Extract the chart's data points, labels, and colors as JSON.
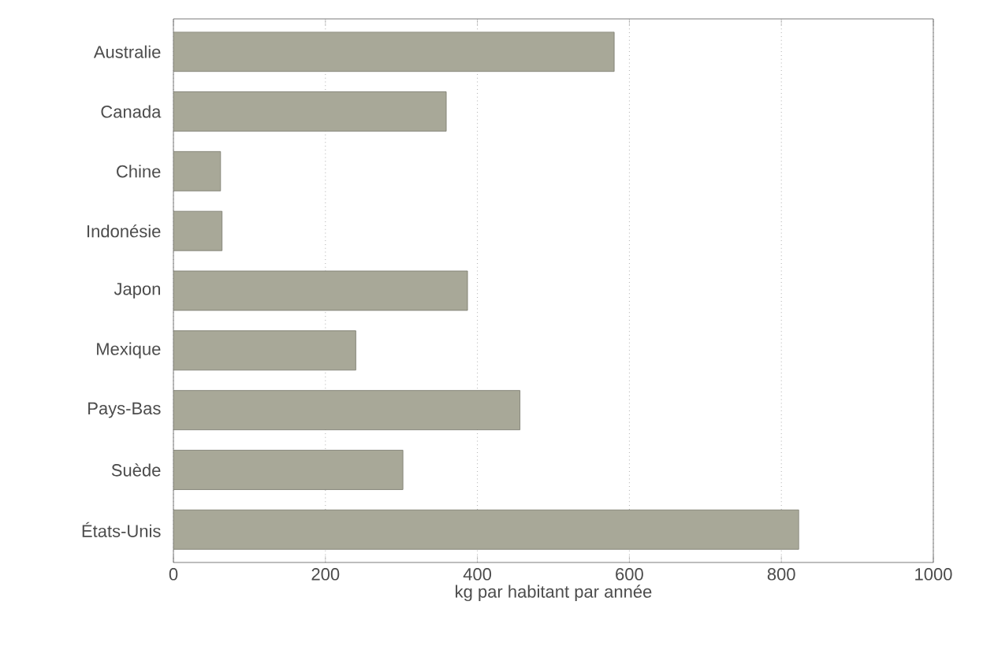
{
  "chart_data": {
    "type": "bar",
    "orientation": "horizontal",
    "xlabel": "kg par habitant par année",
    "categories": [
      "Australie",
      "Canada",
      "Chine",
      "Indonésie",
      "Japon",
      "Mexique",
      "Pays-Bas",
      "Suède",
      "États-Unis"
    ],
    "values": [
      580,
      359,
      62,
      64,
      387,
      240,
      456,
      302,
      823
    ],
    "color": "#a8a898",
    "xlim": [
      0,
      1000
    ],
    "xticks": [
      0,
      200,
      400,
      600,
      800,
      1000
    ],
    "grid": "x"
  }
}
